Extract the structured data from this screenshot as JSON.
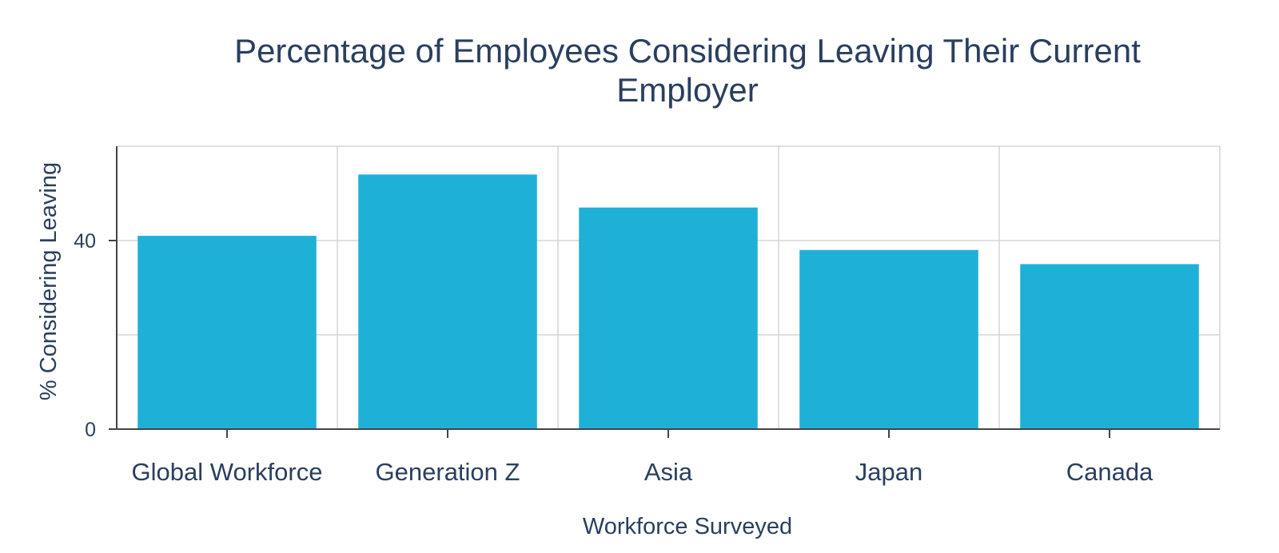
{
  "chart_data": {
    "type": "bar",
    "title_lines": [
      "Percentage of Employees Considering Leaving Their Current",
      "Employer"
    ],
    "xlabel": "Workforce Surveyed",
    "ylabel": "% Considering Leaving",
    "categories": [
      "Global Workforce",
      "Generation Z",
      "Asia",
      "Japan",
      "Canada"
    ],
    "values": [
      41,
      54,
      47,
      38,
      35
    ],
    "yticks": [
      0,
      40
    ],
    "ylim": [
      0,
      60
    ],
    "grid": true,
    "bar_color": "#1fb0d8",
    "grid_color": "#d6d6d6",
    "text_color": "#2a3f5f"
  }
}
